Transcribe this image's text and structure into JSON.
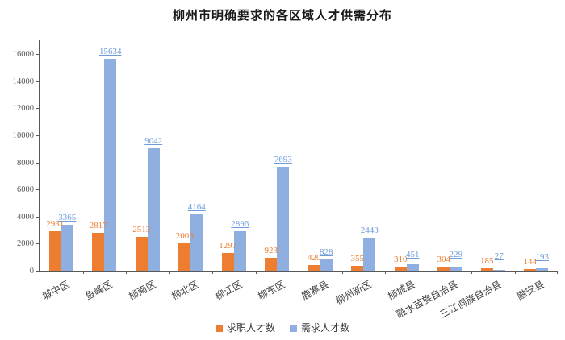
{
  "chart_data": {
    "type": "bar",
    "title": "柳州市明确要求的各区域人才供需分布",
    "categories": [
      "城中区",
      "鱼峰区",
      "柳南区",
      "柳北区",
      "柳江区",
      "柳东区",
      "鹿寨县",
      "柳州新区",
      "柳城县",
      "融水苗族自治县",
      "三江侗族自治县",
      "融安县"
    ],
    "series": [
      {
        "name": "求职人才数",
        "color": "#ED7D31",
        "label_color": "#ED7D31",
        "underline_labels": false,
        "values": [
          2931,
          2817,
          2513,
          2003,
          1297,
          923,
          420,
          355,
          310,
          304,
          185,
          144
        ]
      },
      {
        "name": "需求人才数",
        "color": "#8FAFE0",
        "label_color": "#6E9CD9",
        "underline_labels": true,
        "values": [
          3365,
          15634,
          9042,
          4164,
          2896,
          7693,
          828,
          2443,
          451,
          229,
          27,
          193
        ]
      }
    ],
    "xlabel": "",
    "ylabel": "",
    "ylim": [
      0,
      16000
    ],
    "yticks": [
      0,
      2000,
      4000,
      6000,
      8000,
      10000,
      12000,
      14000,
      16000
    ],
    "grid": false,
    "legend_position": "bottom",
    "colors": {
      "axis": "#595959",
      "y_tick_label": "#595959",
      "x_tick_label": "#404040",
      "title": "#1A1A1A",
      "legend_text": "#333333",
      "background": "#FFFFFF"
    }
  }
}
